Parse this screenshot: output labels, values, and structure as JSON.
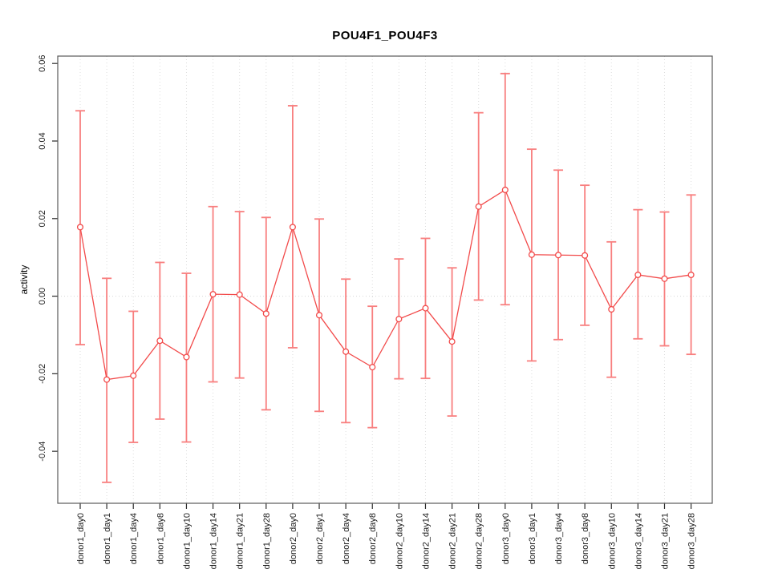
{
  "title": "POU4F1_POU4F3",
  "chart_data": {
    "type": "line",
    "subtype": "points-with-error-bars",
    "title": "POU4F1_POU4F3",
    "xlabel": "",
    "ylabel": "activity",
    "legend": "none",
    "grid": "vertical dotted gridline at each category; dotted horizontal reference line at y=0",
    "ylim": [
      -0.0534,
      0.0619
    ],
    "y_tick_values": [
      0.06,
      0.04,
      0.02,
      0.0,
      -0.02,
      -0.04
    ],
    "y_tick_labels": [
      "0.06",
      "0.04",
      "0.02",
      "0.00",
      "-0.02",
      "-0.04"
    ],
    "categories": [
      "donor1_day0",
      "donor1_day1",
      "donor1_day4",
      "donor1_day8",
      "donor1_day10",
      "donor1_day14",
      "donor1_day21",
      "donor1_day28",
      "donor2_day0",
      "donor2_day1",
      "donor2_day4",
      "donor2_day8",
      "donor2_day10",
      "donor2_day14",
      "donor2_day21",
      "donor2_day28",
      "donor3_day0",
      "donor3_day1",
      "donor3_day4",
      "donor3_day8",
      "donor3_day10",
      "donor3_day14",
      "donor3_day21",
      "donor3_day28"
    ],
    "series": [
      {
        "name": "activity",
        "values": [
          0.0178,
          -0.0215,
          -0.0205,
          -0.0115,
          -0.0157,
          0.0005,
          0.0004,
          -0.0045,
          0.0178,
          -0.0049,
          -0.0143,
          -0.0183,
          -0.0059,
          -0.0031,
          -0.0117,
          0.0231,
          0.0274,
          0.0107,
          0.0106,
          0.0105,
          -0.0034,
          0.0055,
          0.0045,
          0.0055
        ],
        "upper": [
          0.0478,
          0.0046,
          -0.0039,
          0.0087,
          0.0059,
          0.0231,
          0.0218,
          0.0203,
          0.0491,
          0.0199,
          0.0044,
          -0.0026,
          0.0096,
          0.0149,
          0.0073,
          0.0473,
          0.0574,
          0.0379,
          0.0325,
          0.0286,
          0.014,
          0.0223,
          0.0217,
          0.0261
        ],
        "lower": [
          -0.0125,
          -0.048,
          -0.0377,
          -0.0317,
          -0.0376,
          -0.0221,
          -0.0211,
          -0.0293,
          -0.0133,
          -0.0297,
          -0.0326,
          -0.0339,
          -0.0213,
          -0.0212,
          -0.0309,
          -0.001,
          -0.0022,
          -0.0167,
          -0.0112,
          -0.0075,
          -0.0209,
          -0.011,
          -0.0128,
          -0.015
        ]
      }
    ],
    "colors": {
      "series_line": "#f24a4a",
      "point_stroke": "#f24a4a",
      "point_fill": "#ffffff",
      "error_bar": "#f87f7f",
      "gridline": "#dcdcdc",
      "zero_line": "#d6d6d6",
      "axis_box": "#5a5a5a",
      "tick": "#2b2b2b",
      "background": "#ffffff"
    }
  }
}
